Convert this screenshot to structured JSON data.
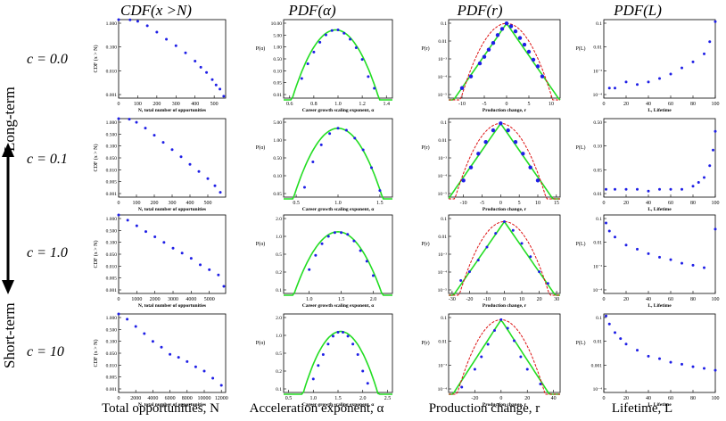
{
  "columns": [
    {
      "title": "CDF(x >N)",
      "footer": "Total opportunities, N"
    },
    {
      "title": "PDF(α)",
      "footer": "Acceleration exponent, α"
    },
    {
      "title": "PDF(r)",
      "footer": "Production change, r"
    },
    {
      "title": "PDF(L)",
      "footer": "Lifetime, L"
    }
  ],
  "rows": [
    "c = 0.0",
    "c = 0.1",
    "c = 1.0",
    "c = 10"
  ],
  "side_labels": {
    "top": "Long-term",
    "bottom": "Short-term"
  },
  "colors": {
    "points": "#1f1fe6",
    "green_fit": "#22dd22",
    "red_fit": "#dd1111"
  },
  "chart_data": [
    {
      "type": "scatter",
      "panel": "r0c0",
      "ylabel": "CDF (x > N)",
      "xlabel": "N, total number of opportunities",
      "xticks": [
        0,
        100,
        200,
        300,
        400,
        500
      ],
      "yticks": [
        "1.000",
        "0.100",
        "0.010",
        "0.001"
      ],
      "xlim": [
        0,
        560
      ],
      "ylim_log": [
        -3.3,
        0
      ],
      "series": [
        {
          "x": [
            0,
            60,
            100,
            150,
            200,
            250,
            300,
            350,
            400,
            430,
            460,
            490,
            510,
            530,
            550
          ],
          "y": [
            1,
            0.98,
            0.85,
            0.55,
            0.3,
            0.15,
            0.08,
            0.04,
            0.018,
            0.01,
            0.006,
            0.003,
            0.0018,
            0.0012,
            0.0006
          ]
        }
      ]
    },
    {
      "type": "scatter",
      "panel": "r0c1",
      "ylabel": "P(α)",
      "xlabel": "Career growth scaling exponent, α",
      "xticks": [
        "0.6",
        "0.8",
        "1.0",
        "1.2",
        "1.4"
      ],
      "yticks": [
        "10.00",
        "5.00",
        "1.00",
        "0.50",
        "0.10",
        "0.05",
        "0.01"
      ],
      "xlim": [
        0.55,
        1.45
      ],
      "ylim_log": [
        -2.1,
        1.1
      ],
      "series": [
        {
          "x": [
            0.7,
            0.75,
            0.8,
            0.85,
            0.9,
            0.95,
            1.0,
            1.05,
            1.1,
            1.15,
            1.2,
            1.25,
            1.3
          ],
          "y": [
            0.05,
            0.2,
            0.6,
            1.5,
            3.0,
            4.5,
            4.8,
            3.5,
            2.0,
            0.9,
            0.3,
            0.06,
            0.02
          ]
        }
      ],
      "fits": [
        {
          "color": "green",
          "mu": 0.98,
          "sigma": 0.1,
          "peak": 4.8
        }
      ]
    },
    {
      "type": "scatter",
      "panel": "r0c2",
      "ylabel": "P(r)",
      "xlabel": "Production change, r",
      "xticks": [
        -10,
        -5,
        0,
        5,
        10
      ],
      "yticks": [
        "0.1",
        "0.01",
        "10⁻³",
        "10⁻⁴",
        "10⁻⁵"
      ],
      "xlim": [
        -13,
        12
      ],
      "ylim_log": [
        -5.3,
        -0.6
      ],
      "series": [
        {
          "x": [
            -10,
            -8,
            -6,
            -5,
            -4,
            -3,
            -2,
            -1,
            0,
            1,
            2,
            3,
            4,
            5,
            6,
            7,
            8
          ],
          "y": [
            2e-05,
            0.0001,
            0.0006,
            0.0015,
            0.004,
            0.01,
            0.03,
            0.07,
            0.15,
            0.1,
            0.05,
            0.02,
            0.008,
            0.003,
            0.001,
            0.0004,
            0.0001
          ]
        }
      ],
      "fits": [
        {
          "color": "green",
          "type": "laplace"
        },
        {
          "color": "red",
          "type": "gauss"
        }
      ]
    },
    {
      "type": "scatter",
      "panel": "r0c3",
      "ylabel": "P(L)",
      "xlabel": "L, Lifetime",
      "xticks": [
        0,
        20,
        40,
        60,
        80,
        100
      ],
      "yticks": [
        "0.1",
        "0.01",
        "10⁻³",
        "10⁻⁴"
      ],
      "xlim": [
        0,
        100
      ],
      "ylim_log": [
        -4.5,
        -0.6
      ],
      "series": [
        {
          "x": [
            5,
            10,
            20,
            30,
            40,
            50,
            60,
            70,
            80,
            90,
            95,
            100
          ],
          "y": [
            0.0001,
            0.0001,
            0.0002,
            0.00015,
            0.0002,
            0.0003,
            0.0005,
            0.001,
            0.002,
            0.005,
            0.02,
            0.2
          ]
        }
      ]
    },
    {
      "type": "scatter",
      "panel": "r1c0",
      "ylabel": "CDF (x > N)",
      "xlabel": "N, total number of opportunities",
      "xticks": [
        0,
        100,
        200,
        300,
        400,
        500
      ],
      "yticks": [
        "1.000",
        "0.500",
        "0.100",
        "0.050",
        "0.010",
        "0.005",
        "0.001"
      ],
      "xlim": [
        0,
        600
      ],
      "ylim_log": [
        -3.3,
        0
      ],
      "series": [
        {
          "x": [
            0,
            60,
            100,
            150,
            200,
            250,
            300,
            350,
            400,
            450,
            500,
            540,
            570
          ],
          "y": [
            1,
            0.95,
            0.7,
            0.4,
            0.2,
            0.1,
            0.05,
            0.025,
            0.012,
            0.006,
            0.003,
            0.0015,
            0.0008
          ]
        }
      ]
    },
    {
      "type": "scatter",
      "panel": "r1c1",
      "ylabel": "P(α)",
      "xlabel": "Career growth scaling exponent, α",
      "xticks": [
        "0.5",
        "1.0",
        "1.5"
      ],
      "yticks": [
        "5.00",
        "1.00",
        "0.50",
        "0.10",
        "0.05"
      ],
      "xlim": [
        0.35,
        1.65
      ],
      "ylim_log": [
        -1.6,
        0.8
      ],
      "series": [
        {
          "x": [
            0.6,
            0.7,
            0.8,
            0.9,
            1.0,
            1.1,
            1.2,
            1.3,
            1.4,
            1.5
          ],
          "y": [
            0.05,
            0.3,
            1.0,
            2.2,
            3.2,
            2.8,
            1.6,
            0.7,
            0.2,
            0.04
          ]
        }
      ],
      "fits": [
        {
          "color": "green",
          "mu": 1.0,
          "sigma": 0.17,
          "peak": 3.2
        }
      ]
    },
    {
      "type": "scatter",
      "panel": "r1c2",
      "ylabel": "P(r)",
      "xlabel": "Production change, r",
      "xticks": [
        -10,
        -5,
        0,
        5,
        10,
        15
      ],
      "yticks": [
        "0.1",
        "0.01",
        "10⁻³",
        "10⁻⁴",
        "10⁻⁵"
      ],
      "xlim": [
        -14,
        16
      ],
      "ylim_log": [
        -5.3,
        -0.6
      ],
      "series": [
        {
          "x": [
            -10,
            -8,
            -6,
            -4,
            -2,
            0,
            2,
            4,
            6,
            8,
            10
          ],
          "y": [
            5e-05,
            0.0003,
            0.002,
            0.01,
            0.05,
            0.13,
            0.05,
            0.01,
            0.002,
            0.0003,
            5e-05
          ]
        }
      ],
      "fits": [
        {
          "color": "green",
          "type": "laplace"
        },
        {
          "color": "red",
          "type": "gauss"
        }
      ]
    },
    {
      "type": "scatter",
      "panel": "r1c3",
      "ylabel": "P(L)",
      "xlabel": "L, Lifetime",
      "xticks": [
        0,
        20,
        40,
        60,
        80,
        100
      ],
      "yticks": [
        "0.50",
        "0.10",
        "0.05",
        "0.01"
      ],
      "xlim": [
        0,
        100
      ],
      "ylim_log": [
        -2.2,
        -0.2
      ],
      "series": [
        {
          "x": [
            2,
            10,
            20,
            30,
            40,
            50,
            60,
            70,
            80,
            85,
            90,
            95,
            98,
            100
          ],
          "y": [
            0.01,
            0.01,
            0.01,
            0.01,
            0.009,
            0.01,
            0.01,
            0.01,
            0.012,
            0.015,
            0.02,
            0.04,
            0.1,
            0.3
          ]
        }
      ]
    },
    {
      "type": "scatter",
      "panel": "r2c0",
      "ylabel": "CDF (x > N)",
      "xlabel": "N, total number of opportunities",
      "xticks": [
        0,
        1000,
        2000,
        3000,
        4000,
        5000
      ],
      "yticks": [
        "1.000",
        "0.500",
        "0.100",
        "0.050",
        "0.010",
        "0.005",
        "0.001"
      ],
      "xlim": [
        0,
        5900
      ],
      "ylim_log": [
        -3.3,
        0
      ],
      "series": [
        {
          "x": [
            0,
            500,
            1000,
            1500,
            2000,
            2500,
            3000,
            3500,
            4000,
            4500,
            5000,
            5500,
            5800
          ],
          "y": [
            1,
            0.6,
            0.35,
            0.2,
            0.12,
            0.07,
            0.04,
            0.025,
            0.015,
            0.008,
            0.005,
            0.003,
            0.001
          ]
        }
      ]
    },
    {
      "type": "scatter",
      "panel": "r2c1",
      "ylabel": "P(α)",
      "xlabel": "Career growth scaling exponent, α",
      "xticks": [
        "1.0",
        "1.5",
        "2.0"
      ],
      "yticks": [
        "2.0",
        "1.0",
        "0.5",
        "0.2",
        "0.1"
      ],
      "xlim": [
        0.6,
        2.3
      ],
      "ylim_log": [
        -1.2,
        0.45
      ],
      "series": [
        {
          "x": [
            1.0,
            1.1,
            1.2,
            1.3,
            1.4,
            1.5,
            1.6,
            1.7,
            1.8,
            1.9,
            2.0
          ],
          "y": [
            0.2,
            0.4,
            0.7,
            1.0,
            1.2,
            1.2,
            1.1,
            0.8,
            0.5,
            0.3,
            0.15
          ]
        }
      ],
      "fits": [
        {
          "color": "green",
          "mu": 1.45,
          "sigma": 0.28,
          "peak": 1.25
        }
      ]
    },
    {
      "type": "scatter",
      "panel": "r2c2",
      "ylabel": "P(r)",
      "xlabel": "Production change, r",
      "xticks": [
        -30,
        -20,
        -10,
        0,
        10,
        20,
        30
      ],
      "yticks": [
        "0.1",
        "0.01",
        "10⁻³",
        "10⁻⁴",
        "10⁻⁵"
      ],
      "xlim": [
        -32,
        32
      ],
      "ylim_log": [
        -5.3,
        -0.6
      ],
      "series": [
        {
          "x": [
            -25,
            -20,
            -15,
            -10,
            -5,
            0,
            5,
            10,
            15,
            20,
            25
          ],
          "y": [
            3e-05,
            0.0001,
            0.0005,
            0.003,
            0.02,
            0.1,
            0.03,
            0.005,
            0.0008,
            0.0001,
            2e-05
          ]
        }
      ],
      "fits": [
        {
          "color": "green",
          "type": "laplace"
        },
        {
          "color": "red",
          "type": "gauss"
        }
      ]
    },
    {
      "type": "scatter",
      "panel": "r2c3",
      "ylabel": "P(L)",
      "xlabel": "L, Lifetime",
      "xticks": [
        0,
        20,
        40,
        60,
        80,
        100
      ],
      "yticks": [
        "0.1",
        "0.01",
        "10⁻³",
        "10⁻⁴"
      ],
      "xlim": [
        0,
        100
      ],
      "ylim_log": [
        -4.5,
        -0.6
      ],
      "series": [
        {
          "x": [
            2,
            5,
            10,
            20,
            30,
            40,
            50,
            60,
            70,
            80,
            90,
            100
          ],
          "y": [
            0.1,
            0.04,
            0.02,
            0.008,
            0.005,
            0.003,
            0.002,
            0.0015,
            0.001,
            0.0008,
            0.0006,
            0.05
          ]
        }
      ]
    },
    {
      "type": "scatter",
      "panel": "r3c0",
      "ylabel": "CDF (x > N)",
      "xlabel": "N, total number of opportunities",
      "xticks": [
        0,
        2000,
        4000,
        6000,
        8000,
        10000,
        12000
      ],
      "yticks": [
        "1.000",
        "0.500",
        "0.100",
        "0.050",
        "0.010",
        "0.005",
        "0.001"
      ],
      "xlim": [
        0,
        12500
      ],
      "ylim_log": [
        -3.3,
        0
      ],
      "series": [
        {
          "x": [
            0,
            1000,
            2000,
            3000,
            4000,
            5000,
            6000,
            7000,
            8000,
            9000,
            10000,
            11000,
            12000
          ],
          "y": [
            1,
            0.6,
            0.3,
            0.15,
            0.07,
            0.04,
            0.02,
            0.015,
            0.01,
            0.006,
            0.004,
            0.002,
            0.001
          ]
        }
      ]
    },
    {
      "type": "scatter",
      "panel": "r3c1",
      "ylabel": "P(α)",
      "xlabel": "Career growth scaling exponent, α",
      "xticks": [
        "0.5",
        "1.0",
        "1.5",
        "2.0",
        "2.5"
      ],
      "yticks": [
        "2.0",
        "1.0",
        "0.5",
        "0.2",
        "0.1"
      ],
      "xlim": [
        0.4,
        2.6
      ],
      "ylim_log": [
        -1.3,
        0.45
      ],
      "series": [
        {
          "x": [
            1.0,
            1.1,
            1.2,
            1.3,
            1.4,
            1.5,
            1.6,
            1.7,
            1.8,
            1.9,
            2.0,
            2.1
          ],
          "y": [
            0.1,
            0.2,
            0.35,
            0.6,
            0.9,
            1.1,
            1.1,
            0.9,
            0.6,
            0.35,
            0.15,
            0.08
          ]
        }
      ],
      "fits": [
        {
          "color": "green",
          "mu": 1.55,
          "sigma": 0.3,
          "peak": 1.15
        }
      ]
    },
    {
      "type": "scatter",
      "panel": "r3c2",
      "ylabel": "P(r)",
      "xlabel": "Production change, r",
      "xticks": [
        -20,
        0,
        20,
        40
      ],
      "yticks": [
        "0.1",
        "0.01",
        "10⁻³",
        "10⁻⁴"
      ],
      "xlim": [
        -40,
        45
      ],
      "ylim_log": [
        -5.0,
        -0.6
      ],
      "series": [
        {
          "x": [
            -30,
            -20,
            -15,
            -10,
            -5,
            0,
            5,
            10,
            15,
            20,
            30
          ],
          "y": [
            2e-05,
            0.0002,
            0.001,
            0.005,
            0.03,
            0.12,
            0.04,
            0.008,
            0.001,
            0.0002,
            3e-05
          ]
        }
      ],
      "fits": [
        {
          "color": "green",
          "type": "laplace"
        },
        {
          "color": "red",
          "type": "gauss"
        }
      ]
    },
    {
      "type": "scatter",
      "panel": "r3c3",
      "ylabel": "P(L)",
      "xlabel": "L, Lifetime",
      "xticks": [
        0,
        20,
        40,
        60,
        80,
        100
      ],
      "yticks": [
        "0.1",
        "0.01",
        "0.001",
        "10⁻⁴"
      ],
      "xlim": [
        0,
        100
      ],
      "ylim_log": [
        -4.5,
        -0.6
      ],
      "series": [
        {
          "x": [
            2,
            5,
            10,
            15,
            20,
            30,
            40,
            50,
            60,
            70,
            80,
            90,
            100
          ],
          "y": [
            0.2,
            0.08,
            0.03,
            0.015,
            0.008,
            0.004,
            0.002,
            0.0015,
            0.001,
            0.0008,
            0.0006,
            0.0005,
            0.0004
          ]
        }
      ]
    }
  ]
}
